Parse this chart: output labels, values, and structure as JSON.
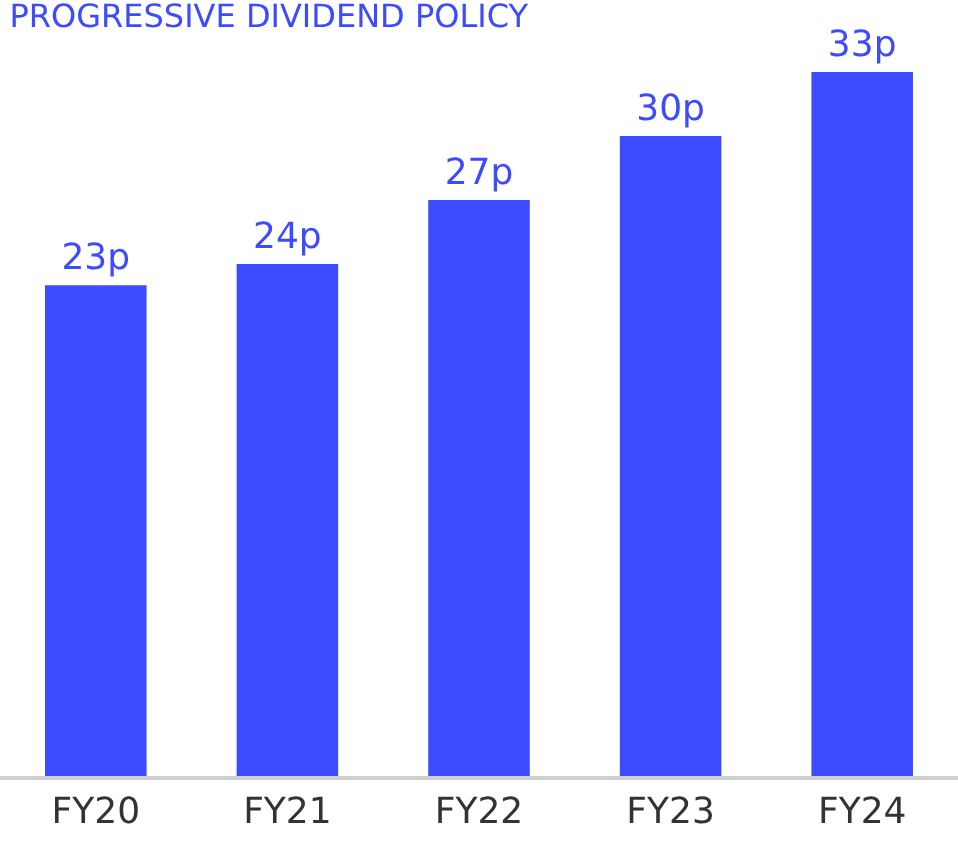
{
  "chart_data": {
    "type": "bar",
    "title": "PROGRESSIVE DIVIDEND POLICY",
    "categories": [
      "FY20",
      "FY21",
      "FY22",
      "FY23",
      "FY24"
    ],
    "values": [
      23,
      24,
      27,
      30,
      33
    ],
    "value_labels": [
      "23p",
      "24p",
      "27p",
      "30p",
      "33p"
    ],
    "color": "#3d4bff"
  }
}
